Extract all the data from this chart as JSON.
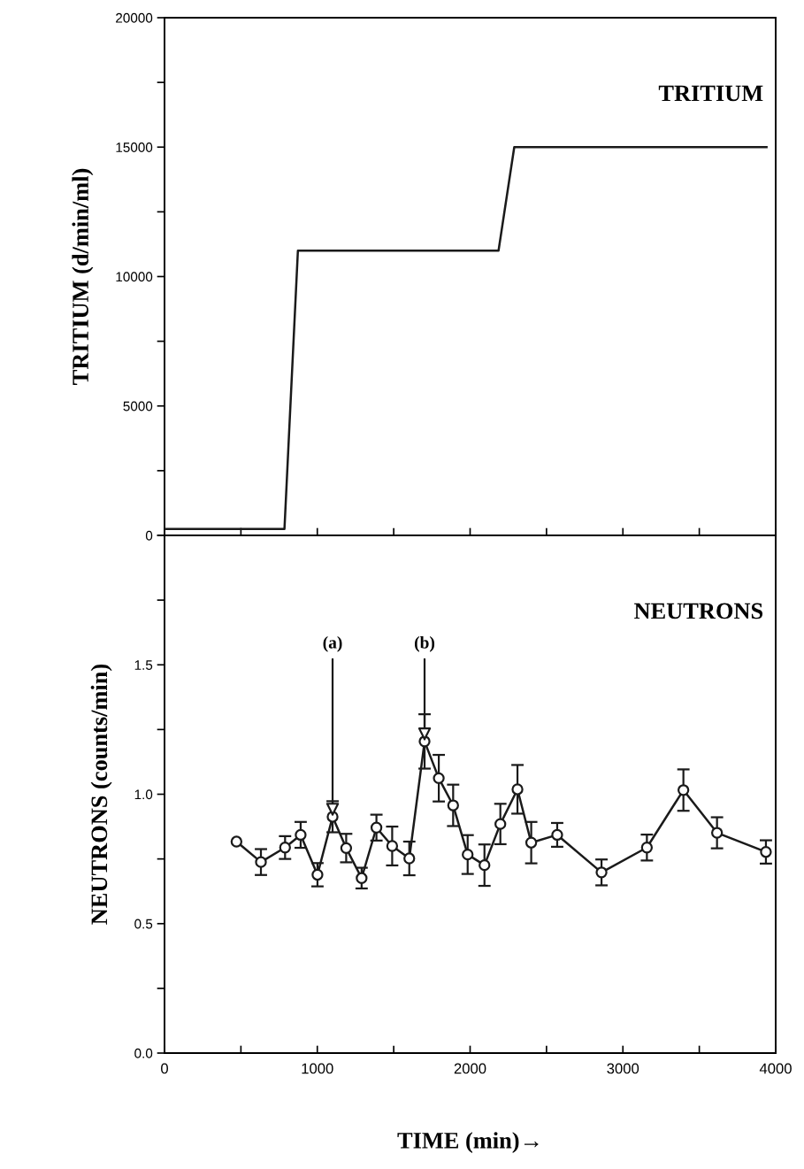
{
  "chart_data": [
    {
      "type": "line",
      "ylabel": "TRITIUM (d/min/ml)",
      "annotations": [
        "TRITIUM"
      ],
      "tick_labels": "y",
      "grid": false,
      "legend": false,
      "marker": "none",
      "line_style": "solid",
      "xlim": [
        0,
        4000
      ],
      "xticks": [
        {
          "value": 0,
          "label": null
        },
        {
          "value": 500,
          "label": null
        },
        {
          "value": 1000,
          "label": null
        },
        {
          "value": 1500,
          "label": null
        },
        {
          "value": 2000,
          "label": null
        },
        {
          "value": 2500,
          "label": null
        },
        {
          "value": 3000,
          "label": null
        },
        {
          "value": 3500,
          "label": null
        },
        {
          "value": 4000,
          "label": null
        }
      ],
      "ylim": [
        0,
        20000
      ],
      "yticks": [
        0,
        {
          "value": 2500,
          "label": null
        },
        5000,
        {
          "value": 7500,
          "label": null
        },
        10000,
        {
          "value": 12500,
          "label": null
        },
        15000,
        {
          "value": 17500,
          "label": null
        },
        20000
      ],
      "series": [
        {
          "color": "#1a1a1a",
          "x": [
            0,
            785,
            873,
            2186,
            2289,
            3940
          ],
          "values": [
            250,
            250,
            11000,
            11000,
            15000,
            15000
          ]
        }
      ]
    },
    {
      "type": "line",
      "xlabel": "TIME (min)→",
      "ylabel": "NEUTRONS (counts/min)",
      "grid": false,
      "legend": false,
      "marker": "circle",
      "line_style": "solid",
      "annotations": [
        "NEUTRONS",
        {
          "text": "(a)",
          "x": 1100,
          "y": 0.913
        },
        {
          "text": "(b)",
          "x": 1702,
          "y": 1.204
        }
      ],
      "xlim": [
        0,
        4000
      ],
      "xticks": [
        0,
        {
          "value": 500,
          "label": null
        },
        1000,
        {
          "value": 1500,
          "label": null
        },
        2000,
        {
          "value": 2500,
          "label": null
        },
        3000,
        {
          "value": 3500,
          "label": null
        },
        4000
      ],
      "ylim": [
        0,
        2.0
      ],
      "yticks": [
        {
          "value": 0,
          "label": "0.0"
        },
        {
          "value": 0.25,
          "label": null
        },
        0.5,
        {
          "value": 0.75,
          "label": null
        },
        {
          "value": 1.0,
          "label": "1.0"
        },
        {
          "value": 1.25,
          "label": null
        },
        1.5,
        {
          "value": 1.75,
          "label": null
        },
        {
          "value": 2.0,
          "label": null
        }
      ],
      "series": [
        {
          "color": "#1a1a1a",
          "x": [
            471,
            631,
            789,
            891,
            1001,
            1100,
            1189,
            1290,
            1387,
            1490,
            1602,
            1702,
            1795,
            1889,
            1984,
            2094,
            2198,
            2310,
            2400,
            2570,
            2860,
            3157,
            3396,
            3616,
            3936
          ],
          "values": [
            0.817,
            0.738,
            0.794,
            0.843,
            0.689,
            0.913,
            0.792,
            0.676,
            0.871,
            0.8,
            0.752,
            1.204,
            1.062,
            0.957,
            0.767,
            0.726,
            0.885,
            1.019,
            0.813,
            0.843,
            0.698,
            0.794,
            1.016,
            0.851,
            0.777
          ],
          "errors": [
            null,
            0.05,
            0.044,
            0.05,
            0.045,
            0.06,
            0.055,
            0.04,
            0.05,
            0.075,
            0.065,
            0.105,
            0.09,
            0.08,
            0.075,
            0.08,
            0.078,
            0.094,
            0.08,
            0.046,
            0.05,
            0.05,
            0.08,
            0.06,
            0.045
          ]
        }
      ]
    }
  ]
}
